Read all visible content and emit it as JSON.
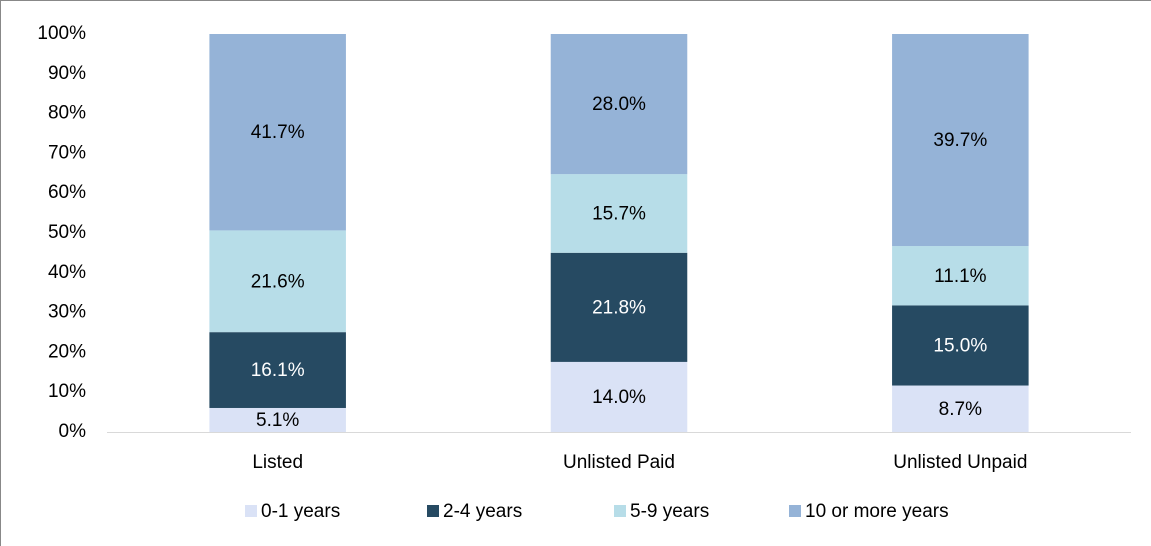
{
  "chart_data": {
    "type": "bar",
    "stacked": "percent",
    "categories": [
      "Listed",
      "Unlisted Paid",
      "Unlisted Unpaid"
    ],
    "series": [
      {
        "name": "0-1 years",
        "color": "#dae2f6",
        "values": [
          5.1,
          14.0,
          8.7
        ],
        "value_labels": [
          "5.1%",
          "14.0%",
          "8.7%"
        ]
      },
      {
        "name": "2-4 years",
        "color": "#264a62",
        "values": [
          16.1,
          21.8,
          15.0
        ],
        "value_labels": [
          "16.1%",
          "21.8%",
          "15.0%"
        ]
      },
      {
        "name": "5-9 years",
        "color": "#b7dde8",
        "values": [
          21.6,
          15.7,
          11.1
        ],
        "value_labels": [
          "21.6%",
          "15.7%",
          "11.1%"
        ]
      },
      {
        "name": "10 or more years",
        "color": "#95b3d7",
        "values": [
          41.7,
          28.0,
          39.7
        ],
        "value_labels": [
          "41.7%",
          "28.0%",
          "39.7%"
        ]
      }
    ],
    "ylim": [
      0,
      100
    ],
    "yticks": [
      {
        "value": 0,
        "label": "0%"
      },
      {
        "value": 10,
        "label": "10%"
      },
      {
        "value": 20,
        "label": "20%"
      },
      {
        "value": 30,
        "label": "30%"
      },
      {
        "value": 40,
        "label": "40%"
      },
      {
        "value": 50,
        "label": "50%"
      },
      {
        "value": 60,
        "label": "60%"
      },
      {
        "value": 70,
        "label": "70%"
      },
      {
        "value": 80,
        "label": "80%"
      },
      {
        "value": 90,
        "label": "90%"
      },
      {
        "value": 100,
        "label": "100%"
      }
    ],
    "grid": false,
    "legend": "bottom"
  }
}
